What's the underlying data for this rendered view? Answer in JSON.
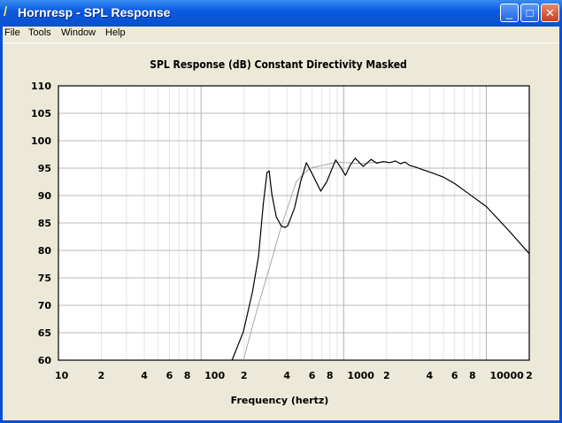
{
  "window": {
    "title": "Hornresp - SPL Response",
    "icon": "lightning-icon",
    "controls": [
      "minimize",
      "maximize",
      "close"
    ]
  },
  "menu": [
    "File",
    "Tools",
    "Window",
    "Help"
  ],
  "chart_data": {
    "type": "line",
    "title": "SPL Response (dB)   Constant Directivity   Masked",
    "xlabel": "Frequency (hertz)",
    "ylabel": "",
    "xscale": "log",
    "xlim": [
      10,
      20000
    ],
    "ylim": [
      60,
      110
    ],
    "grid": true,
    "yticks": [
      "110",
      "105",
      "100",
      "95",
      "90",
      "85",
      "80",
      "75",
      "70",
      "65",
      "60"
    ],
    "xticks": [
      {
        "v": 10,
        "t": "10"
      },
      {
        "v": 20,
        "t": "2"
      },
      {
        "v": 40,
        "t": "4"
      },
      {
        "v": 60,
        "t": "6"
      },
      {
        "v": 80,
        "t": "8"
      },
      {
        "v": 100,
        "t": "100"
      },
      {
        "v": 200,
        "t": "2"
      },
      {
        "v": 400,
        "t": "4"
      },
      {
        "v": 600,
        "t": "6"
      },
      {
        "v": 800,
        "t": "8"
      },
      {
        "v": 1000,
        "t": "1000"
      },
      {
        "v": 2000,
        "t": "2"
      },
      {
        "v": 4000,
        "t": "4"
      },
      {
        "v": 6000,
        "t": "6"
      },
      {
        "v": 8000,
        "t": "8"
      },
      {
        "v": 10000,
        "t": "10000"
      },
      {
        "v": 20000,
        "t": "2"
      }
    ],
    "series": [
      {
        "color": "#000000",
        "points": [
          [
            165,
            60
          ],
          [
            198,
            65.2
          ],
          [
            229,
            72.4
          ],
          [
            253,
            78.9
          ],
          [
            273,
            88.5
          ],
          [
            290,
            94.2
          ],
          [
            300,
            94.5
          ],
          [
            314,
            90.2
          ],
          [
            337,
            86.1
          ],
          [
            366,
            84.4
          ],
          [
            389,
            84.2
          ],
          [
            405,
            84.5
          ],
          [
            452,
            87.7
          ],
          [
            500,
            92.6
          ],
          [
            548,
            96
          ],
          [
            600,
            94
          ],
          [
            690,
            90.8
          ],
          [
            760,
            92.5
          ],
          [
            879,
            96.5
          ],
          [
            950,
            95.2
          ],
          [
            1028,
            93.7
          ],
          [
            1110,
            95.5
          ],
          [
            1203,
            96.8
          ],
          [
            1370,
            95.3
          ],
          [
            1560,
            96.6
          ],
          [
            1700,
            95.9
          ],
          [
            1900,
            96.2
          ],
          [
            2100,
            96
          ],
          [
            2300,
            96.3
          ],
          [
            2500,
            95.8
          ],
          [
            2700,
            96.1
          ],
          [
            2900,
            95.5
          ],
          [
            3200,
            95.2
          ],
          [
            3500,
            94.8
          ],
          [
            4000,
            94.3
          ],
          [
            4970,
            93.4
          ],
          [
            6000,
            92.2
          ],
          [
            7660,
            90.2
          ],
          [
            10000,
            88
          ],
          [
            14300,
            83.7
          ],
          [
            20000,
            79.4
          ]
        ]
      },
      {
        "color": "#A8A8A8",
        "points": [
          [
            198,
            60
          ],
          [
            247,
            69.2
          ],
          [
            305,
            77.3
          ],
          [
            366,
            84.5
          ],
          [
            467,
            92.6
          ],
          [
            580,
            95
          ],
          [
            890,
            96.1
          ],
          [
            1370,
            95.8
          ],
          [
            1560,
            96.0
          ],
          [
            1900,
            96.1
          ]
        ]
      }
    ]
  }
}
